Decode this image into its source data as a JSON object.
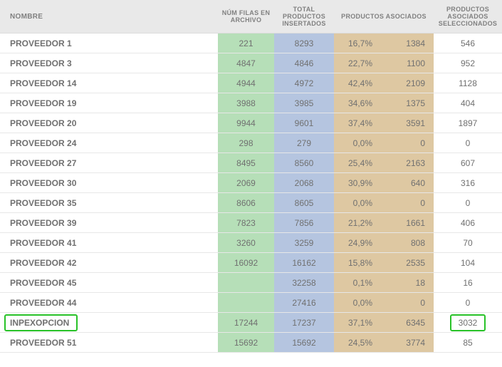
{
  "table": {
    "headers": {
      "nombre": "NOMBRE",
      "filas": "NÚM FILAS EN ARCHIVO",
      "insertados": "TOTAL PRODUCTOS INSERTADOS",
      "asociados": "PRODUCTOS ASOCIADOS",
      "seleccionados": "PRODUCTOS ASOCIADOS SELECCIONADOS"
    },
    "rows": [
      {
        "nombre": "PROVEEDOR 1",
        "filas": "221",
        "ins": "8293",
        "pct": "16,7%",
        "asoc": "1384",
        "sel": "546",
        "hl": false
      },
      {
        "nombre": "PROVEEDOR 3",
        "filas": "4847",
        "ins": "4846",
        "pct": "22,7%",
        "asoc": "1100",
        "sel": "952",
        "hl": false
      },
      {
        "nombre": "PROVEEDOR 14",
        "filas": "4944",
        "ins": "4972",
        "pct": "42,4%",
        "asoc": "2109",
        "sel": "1128",
        "hl": false
      },
      {
        "nombre": "PROVEEDOR 19",
        "filas": "3988",
        "ins": "3985",
        "pct": "34,6%",
        "asoc": "1375",
        "sel": "404",
        "hl": false
      },
      {
        "nombre": "PROVEEDOR 20",
        "filas": "9944",
        "ins": "9601",
        "pct": "37,4%",
        "asoc": "3591",
        "sel": "1897",
        "hl": false
      },
      {
        "nombre": "PROVEEDOR 24",
        "filas": "298",
        "ins": "279",
        "pct": "0,0%",
        "asoc": "0",
        "sel": "0",
        "hl": false
      },
      {
        "nombre": "PROVEEDOR 27",
        "filas": "8495",
        "ins": "8560",
        "pct": "25,4%",
        "asoc": "2163",
        "sel": "607",
        "hl": false
      },
      {
        "nombre": "PROVEEDOR 30",
        "filas": "2069",
        "ins": "2068",
        "pct": "30,9%",
        "asoc": "640",
        "sel": "316",
        "hl": false
      },
      {
        "nombre": "PROVEEDOR 35",
        "filas": "8606",
        "ins": "8605",
        "pct": "0,0%",
        "asoc": "0",
        "sel": "0",
        "hl": false
      },
      {
        "nombre": "PROVEEDOR 39",
        "filas": "7823",
        "ins": "7856",
        "pct": "21,2%",
        "asoc": "1661",
        "sel": "406",
        "hl": false
      },
      {
        "nombre": "PROVEEDOR 41",
        "filas": "3260",
        "ins": "3259",
        "pct": "24,9%",
        "asoc": "808",
        "sel": "70",
        "hl": false
      },
      {
        "nombre": "PROVEEDOR 42",
        "filas": "16092",
        "ins": "16162",
        "pct": "15,8%",
        "asoc": "2535",
        "sel": "104",
        "hl": false
      },
      {
        "nombre": "PROVEEDOR 45",
        "filas": "",
        "ins": "32258",
        "pct": "0,1%",
        "asoc": "18",
        "sel": "16",
        "hl": false
      },
      {
        "nombre": "PROVEEDOR 44",
        "filas": "",
        "ins": "27416",
        "pct": "0,0%",
        "asoc": "0",
        "sel": "0",
        "hl": false
      },
      {
        "nombre": "INPEXOPCION",
        "filas": "17244",
        "ins": "17237",
        "pct": "37,1%",
        "asoc": "6345",
        "sel": "3032",
        "hl": true
      },
      {
        "nombre": "PROVEEDOR 51",
        "filas": "15692",
        "ins": "15692",
        "pct": "24,5%",
        "asoc": "3774",
        "sel": "85",
        "hl": false
      }
    ],
    "colors": {
      "header_bg": "#e9e9e9",
      "header_text": "#808080",
      "col_green": "#b6dfb8",
      "col_blue": "#b5c5e0",
      "col_tan": "#dec8a2",
      "highlight_border": "#28c228",
      "row_border": "#e7e7e7",
      "text": "#707070"
    }
  }
}
